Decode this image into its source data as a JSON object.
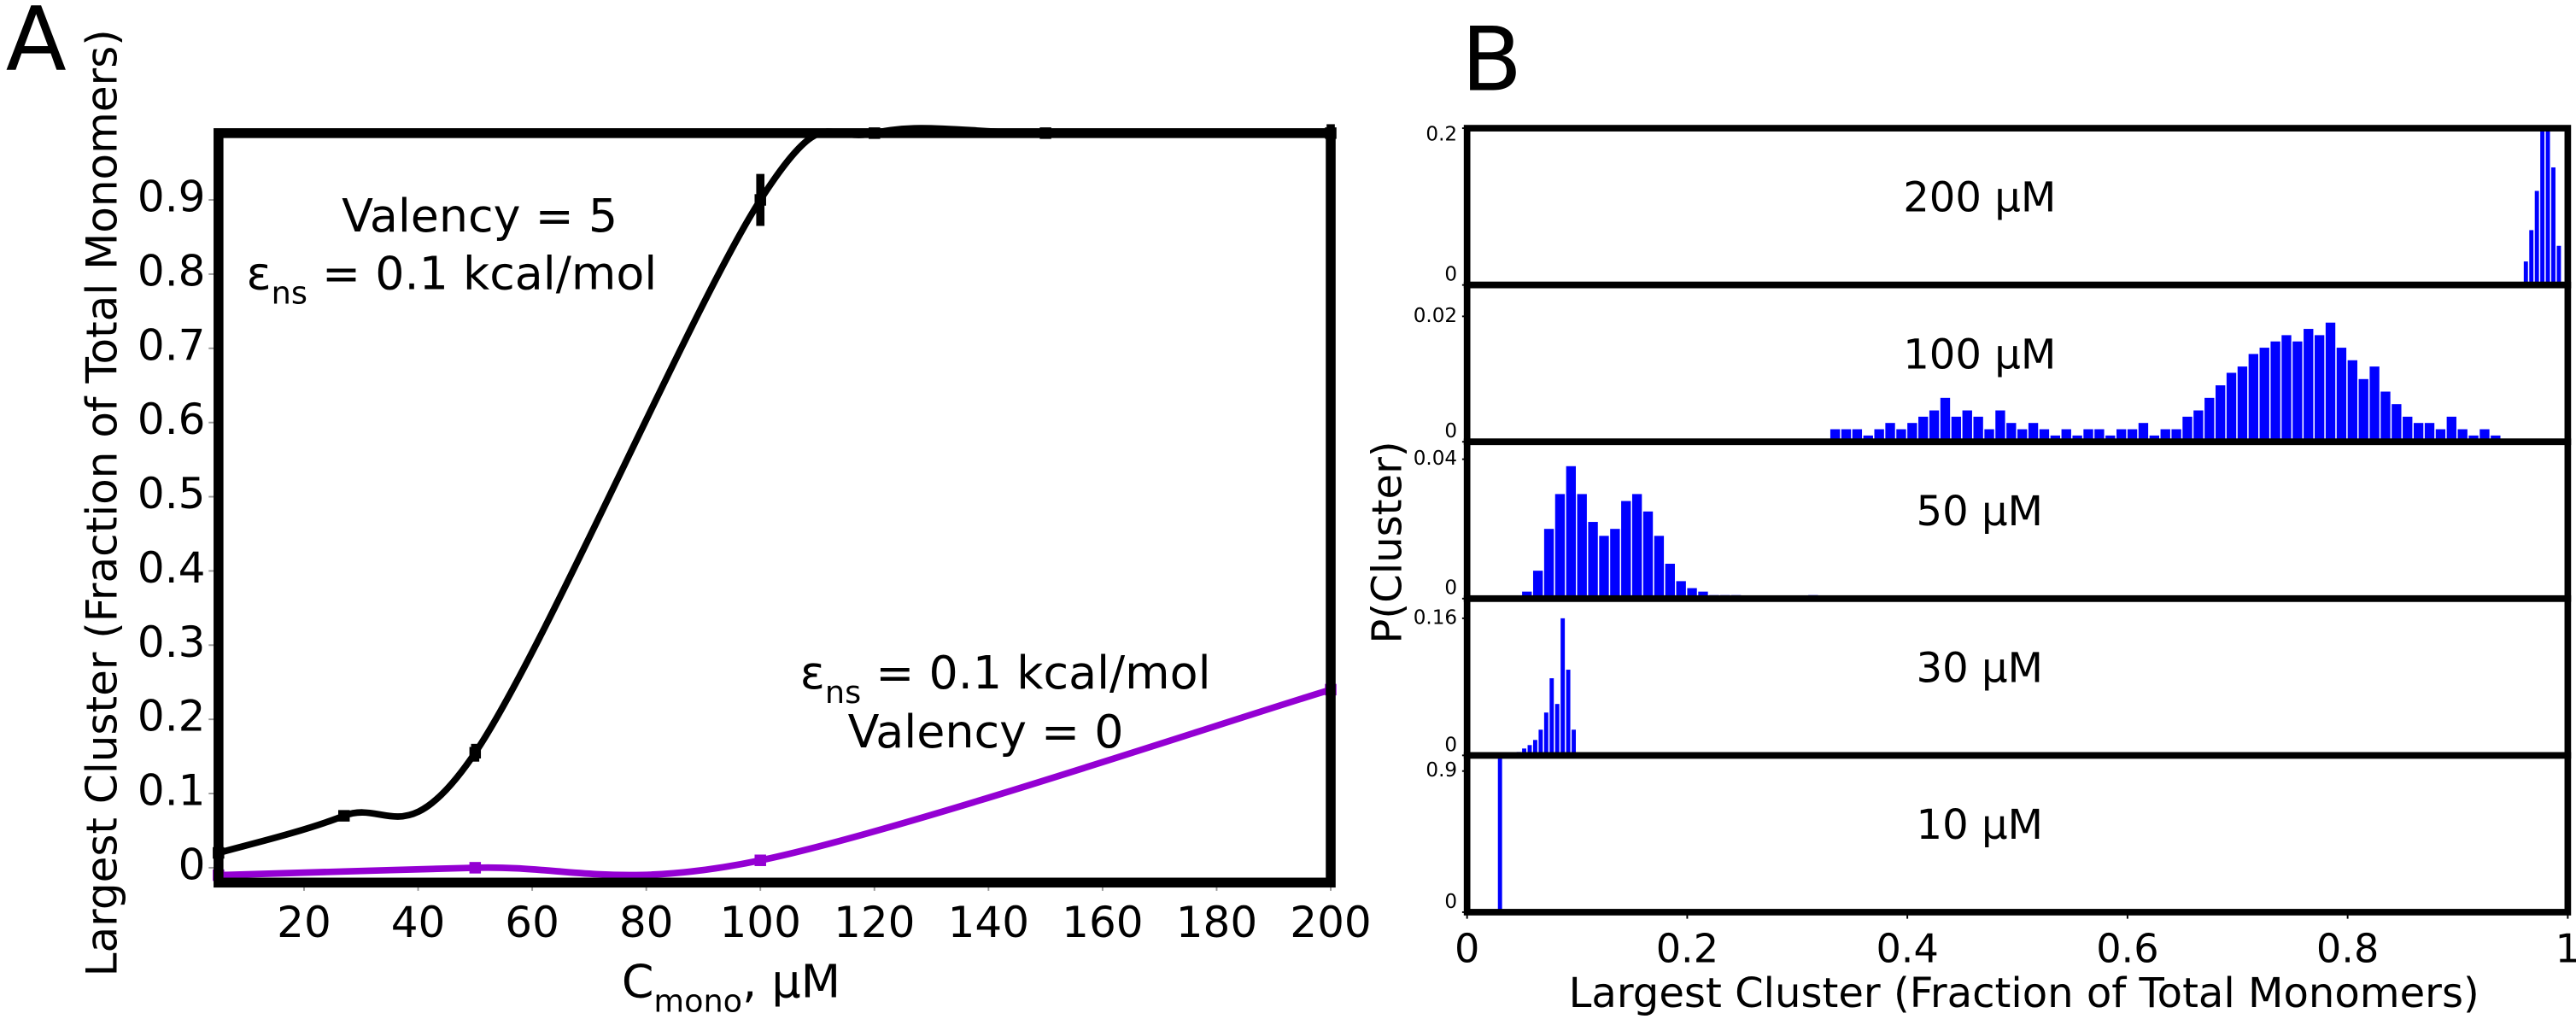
{
  "chart_data": [
    {
      "type": "line",
      "panel": "A",
      "xlabel": {
        "symbol": "C",
        "sub": "mono",
        "rest": ", μM"
      },
      "ylabel": "Largest Cluster (Fraction of Total Monomers)",
      "xlim": [
        5,
        200
      ],
      "ylim": [
        -0.02,
        0.99
      ],
      "xticks": [
        20,
        40,
        60,
        80,
        100,
        120,
        140,
        160,
        180,
        200
      ],
      "yticks": [
        0,
        0.1,
        0.2,
        0.3,
        0.4,
        0.5,
        0.6,
        0.7,
        0.8,
        0.9
      ],
      "series": [
        {
          "color": "#000000",
          "x": [
            5,
            27,
            50,
            100,
            120,
            150,
            200
          ],
          "values": [
            0.02,
            0.07,
            0.155,
            0.9,
            0.99,
            0.99,
            0.99
          ],
          "errors": [
            0.005,
            0.005,
            0.012,
            0.035,
            0.005,
            0.003,
            0.012
          ]
        },
        {
          "color": "#9400d3",
          "x": [
            5,
            50,
            100,
            200
          ],
          "values": [
            -0.01,
            0.0,
            0.01,
            0.24
          ],
          "errors": [
            0.003,
            0.004,
            0.004,
            0.03
          ]
        }
      ],
      "annotations": [
        {
          "text": "Valency = 5"
        },
        {
          "symbol": "ε",
          "sub": "ns",
          "rest": " = 0.1 kcal/mol"
        },
        {
          "symbol": "ε",
          "sub": "ns",
          "rest": " = 0.1 kcal/mol"
        },
        {
          "text": "Valency = 0"
        }
      ]
    },
    {
      "type": "histogram-stack",
      "panel": "B",
      "xlabel": "Largest Cluster (Fraction of Total Monomers)",
      "ylabel": "P(Cluster)",
      "xlim": [
        0,
        1
      ],
      "xticks": [
        0,
        0.2,
        0.4,
        0.6,
        0.8,
        1
      ],
      "panels": [
        {
          "title": "200 μM",
          "color": "#0000ff",
          "ylim": [
            0,
            0.2
          ],
          "yticks": [
            0,
            0.2
          ],
          "bins": [
            0.96,
            0.965,
            0.97,
            0.975,
            0.98,
            0.985,
            0.99,
            0.995
          ],
          "values": [
            0.03,
            0.07,
            0.12,
            0.2,
            0.2,
            0.15,
            0.05
          ]
        },
        {
          "title": "100 μM",
          "color": "#0000ff",
          "ylim": [
            0,
            0.025
          ],
          "yticks": [
            0,
            0.02
          ],
          "bins": [
            0.33,
            0.34,
            0.35,
            0.36,
            0.37,
            0.38,
            0.39,
            0.4,
            0.41,
            0.42,
            0.43,
            0.44,
            0.45,
            0.46,
            0.47,
            0.48,
            0.49,
            0.5,
            0.51,
            0.52,
            0.53,
            0.54,
            0.55,
            0.56,
            0.57,
            0.58,
            0.59,
            0.6,
            0.61,
            0.62,
            0.63,
            0.64,
            0.65,
            0.66,
            0.67,
            0.68,
            0.69,
            0.7,
            0.71,
            0.72,
            0.73,
            0.74,
            0.75,
            0.76,
            0.77,
            0.78,
            0.79,
            0.8,
            0.81,
            0.82,
            0.83,
            0.84,
            0.85,
            0.86,
            0.87,
            0.88,
            0.89,
            0.9,
            0.91,
            0.92,
            0.93,
            0.94
          ],
          "values": [
            0.002,
            0.002,
            0.002,
            0.001,
            0.002,
            0.003,
            0.002,
            0.003,
            0.004,
            0.005,
            0.007,
            0.004,
            0.005,
            0.004,
            0.002,
            0.005,
            0.003,
            0.002,
            0.003,
            0.002,
            0.001,
            0.002,
            0.001,
            0.002,
            0.002,
            0.001,
            0.002,
            0.002,
            0.003,
            0.001,
            0.002,
            0.002,
            0.004,
            0.005,
            0.007,
            0.009,
            0.011,
            0.012,
            0.014,
            0.015,
            0.016,
            0.017,
            0.016,
            0.018,
            0.017,
            0.019,
            0.015,
            0.013,
            0.01,
            0.012,
            0.008,
            0.006,
            0.004,
            0.003,
            0.003,
            0.002,
            0.004,
            0.002,
            0.001,
            0.002,
            0.001
          ]
        },
        {
          "title": "50 μM",
          "color": "#0000ff",
          "ylim": [
            0,
            0.045
          ],
          "yticks": [
            0,
            0.04
          ],
          "bins": [
            0.05,
            0.06,
            0.07,
            0.08,
            0.09,
            0.1,
            0.11,
            0.12,
            0.13,
            0.14,
            0.15,
            0.16,
            0.17,
            0.18,
            0.19,
            0.2,
            0.21,
            0.22,
            0.23,
            0.24,
            0.25,
            0.26,
            0.27,
            0.28,
            0.29,
            0.3,
            0.31,
            0.32
          ],
          "values": [
            0.002,
            0.008,
            0.02,
            0.03,
            0.038,
            0.03,
            0.022,
            0.018,
            0.02,
            0.028,
            0.03,
            0.025,
            0.018,
            0.01,
            0.005,
            0.003,
            0.002,
            0.001,
            0.001,
            0.001,
            0,
            0,
            0,
            0,
            0,
            0,
            0.001
          ]
        },
        {
          "title": "30 μM",
          "color": "#0000ff",
          "ylim": [
            0,
            0.183
          ],
          "yticks": [
            0,
            0.16
          ],
          "bins": [
            0.045,
            0.05,
            0.055,
            0.06,
            0.065,
            0.07,
            0.075,
            0.08,
            0.085,
            0.09,
            0.095,
            0.1
          ],
          "values": [
            0.004,
            0.008,
            0.012,
            0.018,
            0.03,
            0.05,
            0.09,
            0.06,
            0.16,
            0.1,
            0.03
          ]
        },
        {
          "title": "10 μM",
          "color": "#0000ff",
          "ylim": [
            0,
            1.0
          ],
          "yticks": [
            0,
            0.9
          ],
          "bins": [
            0.028,
            0.033
          ],
          "values": [
            0.98
          ]
        }
      ]
    }
  ]
}
